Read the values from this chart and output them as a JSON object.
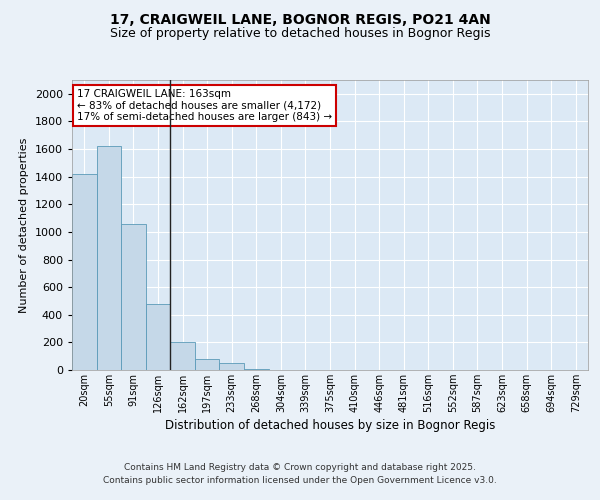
{
  "title1": "17, CRAIGWEIL LANE, BOGNOR REGIS, PO21 4AN",
  "title2": "Size of property relative to detached houses in Bognor Regis",
  "xlabel": "Distribution of detached houses by size in Bognor Regis",
  "ylabel": "Number of detached properties",
  "categories": [
    "20sqm",
    "55sqm",
    "91sqm",
    "126sqm",
    "162sqm",
    "197sqm",
    "233sqm",
    "268sqm",
    "304sqm",
    "339sqm",
    "375sqm",
    "410sqm",
    "446sqm",
    "481sqm",
    "516sqm",
    "552sqm",
    "587sqm",
    "623sqm",
    "658sqm",
    "694sqm",
    "729sqm"
  ],
  "values": [
    1420,
    1620,
    1060,
    480,
    200,
    80,
    50,
    10,
    0,
    0,
    0,
    0,
    0,
    0,
    0,
    0,
    0,
    0,
    0,
    0,
    0
  ],
  "bar_color": "#c5d8e8",
  "bar_edge_color": "#5a9ab8",
  "annotation_text": "17 CRAIGWEIL LANE: 163sqm\n← 83% of detached houses are smaller (4,172)\n17% of semi-detached houses are larger (843) →",
  "vline_index": 4,
  "ylim": [
    0,
    2100
  ],
  "yticks": [
    0,
    200,
    400,
    600,
    800,
    1000,
    1200,
    1400,
    1600,
    1800,
    2000
  ],
  "bg_color": "#eaf1f8",
  "plot_bg": "#dce9f5",
  "footer1": "Contains HM Land Registry data © Crown copyright and database right 2025.",
  "footer2": "Contains public sector information licensed under the Open Government Licence v3.0.",
  "title_fontsize": 10,
  "subtitle_fontsize": 9,
  "annot_box_color": "#ffffff",
  "annot_box_edge": "#cc0000",
  "vline_color": "#222222",
  "grid_color": "#ffffff"
}
